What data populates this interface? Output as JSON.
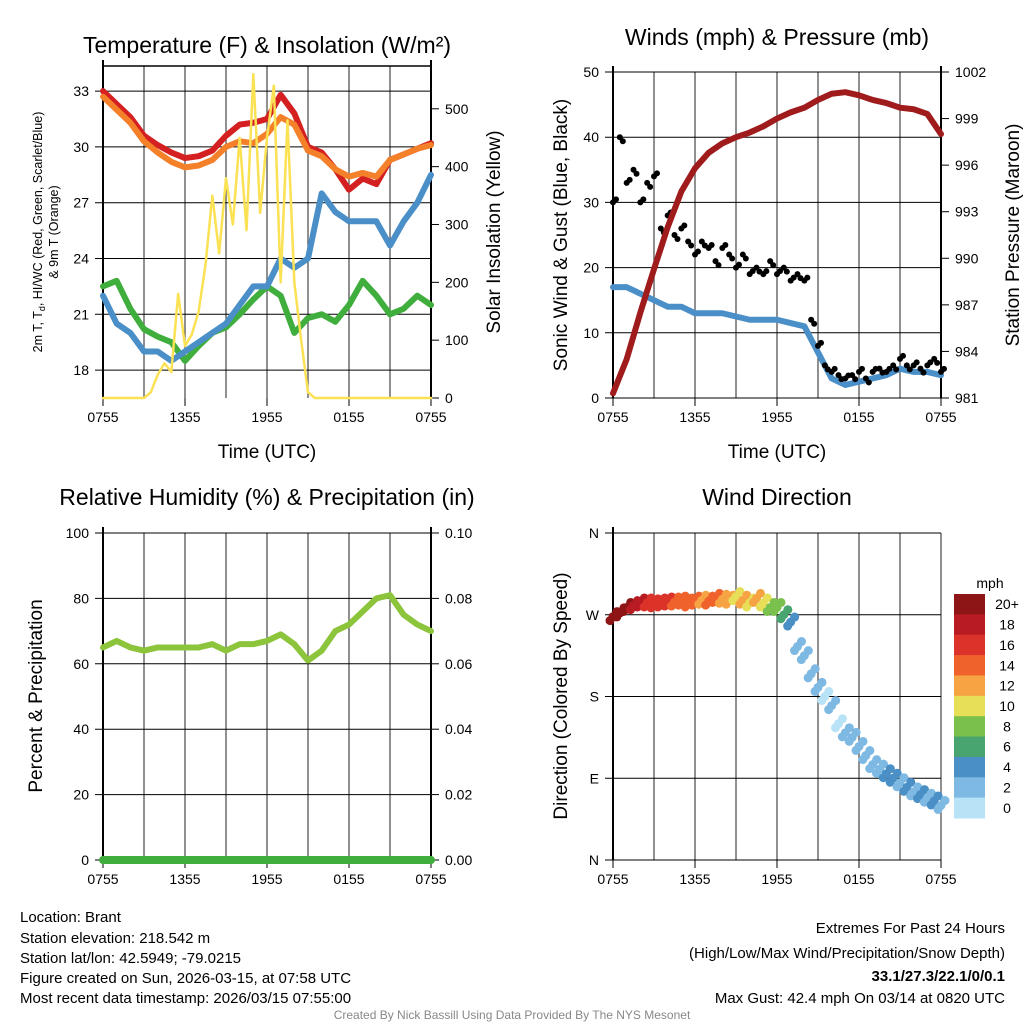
{
  "colors": {
    "temp_red": "#d42020",
    "temp9m_orange": "#f5802a",
    "dewpoint_green": "#3fae3c",
    "windchill_blue": "#4a8fc8",
    "insolation_yellow": "#fbe154",
    "gust_black": "#000000",
    "wind_blue": "#4a8fc8",
    "pressure_maroon": "#a01c1c",
    "rh_green": "#8cc43c",
    "precip_green": "#3fae3c",
    "extremes_red": "#d42020",
    "credit_gray": "#888888"
  },
  "x_ticks": [
    "0755",
    "1355",
    "1955",
    "0155",
    "0755"
  ],
  "chart_data": [
    {
      "type": "line",
      "title": "Temperature (F) & Insolation (W/m²)",
      "xlabel": "Time (UTC)",
      "ylabel_parts": [
        "2m T, T",
        "d",
        ", HI/WC (Red, Green, Scarlet/Blue)"
      ],
      "ylabel_line2": "& 9m T (Orange)",
      "y2label": "Solar Insolation (Yellow)",
      "x_unit": "hours since 0755 UTC",
      "xlim": [
        0,
        24
      ],
      "ylim": [
        16.5,
        34.35
      ],
      "y2lim": [
        0,
        574
      ],
      "yticks": [
        "18",
        "21",
        "24",
        "27",
        "30",
        "33"
      ],
      "y2ticks": [
        "0",
        "100",
        "200",
        "300",
        "400",
        "500"
      ],
      "series": [
        {
          "name": "2m T",
          "axis": "left",
          "color_key": "temp_red",
          "step": 1,
          "values": [
            33,
            32.3,
            31.6,
            30.6,
            30.1,
            29.7,
            29.4,
            29.5,
            29.8,
            30.6,
            31.2,
            31.3,
            31.5,
            32.8,
            31.8,
            30,
            29.7,
            28.8,
            27.7,
            28.3,
            28,
            29.3,
            29.6,
            29.9,
            30.2
          ]
        },
        {
          "name": "9m T",
          "axis": "left",
          "color_key": "temp9m_orange",
          "step": 1,
          "values": [
            32.7,
            32,
            31.3,
            30.3,
            29.7,
            29.2,
            28.9,
            29,
            29.3,
            30,
            30.3,
            30.2,
            30.7,
            31.6,
            31.2,
            29.8,
            29.5,
            28.8,
            28.4,
            28.6,
            28.4,
            29.3,
            29.6,
            29.9,
            30.1
          ]
        },
        {
          "name": "Dewpoint",
          "axis": "left",
          "color_key": "dewpoint_green",
          "step": 1,
          "values": [
            22.5,
            22.8,
            21.3,
            20.2,
            19.8,
            19.5,
            18.5,
            19.3,
            20,
            20.3,
            21,
            21.8,
            22.5,
            22,
            20,
            20.8,
            21,
            20.6,
            21.5,
            22.8,
            22,
            21,
            21.3,
            22,
            21.5
          ]
        },
        {
          "name": "HI/WC",
          "axis": "left",
          "color_key": "windchill_blue",
          "step": 1,
          "values": [
            22,
            20.5,
            20,
            19,
            19,
            18.5,
            19,
            19.5,
            20,
            20.5,
            21.5,
            22.5,
            22.5,
            24,
            23.5,
            24,
            27.5,
            26.5,
            26,
            26,
            26,
            24.7,
            26,
            27,
            28.5
          ]
        },
        {
          "name": "Solar Insolation",
          "axis": "right",
          "color_key": "insolation_yellow",
          "step": 0.5,
          "values": [
            0,
            0,
            0,
            0,
            0,
            0,
            0,
            10,
            40,
            60,
            45,
            180,
            90,
            110,
            150,
            230,
            350,
            250,
            380,
            300,
            450,
            290,
            560,
            320,
            450,
            540,
            200,
            480,
            200,
            100,
            10,
            0,
            0,
            0,
            0,
            0,
            0,
            0,
            0,
            0,
            0,
            0,
            0,
            0,
            0,
            0,
            0,
            0,
            0
          ]
        }
      ]
    },
    {
      "type": "line+scatter",
      "title": "Winds (mph) & Pressure (mb)",
      "xlabel": "Time (UTC)",
      "ylabel": "Sonic Wind & Gust (Blue, Black)",
      "y2label": "Station Pressure (Maroon)",
      "xlim": [
        0,
        24
      ],
      "ylim": [
        0,
        50
      ],
      "y2lim": [
        981,
        1002
      ],
      "yticks": [
        "0",
        "10",
        "20",
        "30",
        "40",
        "50"
      ],
      "y2ticks": [
        "981",
        "984",
        "987",
        "990",
        "993",
        "996",
        "999",
        "1002"
      ],
      "series": [
        {
          "name": "Sustained wind",
          "axis": "left",
          "color_key": "wind_blue",
          "step": 1,
          "values": [
            17,
            17,
            16,
            15,
            14,
            14,
            13,
            13,
            13,
            12.5,
            12,
            12,
            12,
            11.5,
            11,
            7,
            3,
            2,
            2.5,
            3,
            3.5,
            4.5,
            4,
            4,
            3.5
          ]
        },
        {
          "name": "Gust",
          "axis": "left",
          "color_key": "gust_black",
          "step": 0.5,
          "mode": "points",
          "values": [
            30,
            40,
            33,
            35,
            30,
            33,
            34,
            26,
            28,
            25,
            26,
            24,
            22,
            24,
            23,
            21,
            23,
            22,
            20,
            22,
            19,
            20,
            19,
            21,
            19,
            20,
            18,
            19,
            18,
            12,
            8,
            5,
            4,
            3.5,
            3,
            3.5,
            4,
            3,
            4,
            4.5,
            4,
            5,
            6,
            5,
            5,
            4.5,
            5,
            6,
            4
          ]
        },
        {
          "name": "Station Pressure",
          "axis": "right",
          "color_key": "pressure_maroon",
          "step": 1,
          "values": [
            981.3,
            983.5,
            986.5,
            989.3,
            992,
            994.3,
            995.8,
            996.8,
            997.4,
            997.8,
            998.1,
            998.5,
            999,
            999.4,
            999.7,
            1000.2,
            1000.6,
            1000.7,
            1000.5,
            1000.2,
            1000,
            999.7,
            999.6,
            999.3,
            998
          ]
        }
      ]
    },
    {
      "type": "line",
      "title": "Relative Humidity (%) & Precipitation (in)",
      "ylabel": "Percent & Precipitation",
      "xlim": [
        0,
        24
      ],
      "ylim": [
        0,
        100
      ],
      "y2lim": [
        0,
        0.1
      ],
      "yticks": [
        "0",
        "20",
        "40",
        "60",
        "80",
        "100"
      ],
      "y2ticks": [
        "0.00",
        "0.02",
        "0.04",
        "0.06",
        "0.08",
        "0.10"
      ],
      "series": [
        {
          "name": "Relative Humidity",
          "axis": "left",
          "color_key": "rh_green",
          "step": 1,
          "values": [
            65,
            67,
            65,
            64,
            65,
            65,
            65,
            65,
            66,
            64,
            66,
            66,
            67,
            69,
            66,
            61,
            64,
            70,
            72,
            76,
            80,
            81,
            75,
            72,
            70
          ]
        },
        {
          "name": "Precipitation",
          "axis": "right",
          "color_key": "precip_green",
          "step": 1,
          "values": [
            0,
            0,
            0,
            0,
            0,
            0,
            0,
            0,
            0,
            0,
            0,
            0,
            0,
            0,
            0,
            0,
            0,
            0,
            0,
            0,
            0,
            0,
            0,
            0,
            0
          ]
        }
      ]
    },
    {
      "type": "scatter",
      "title": "Wind Direction",
      "ylabel": "Direction (Colored By Speed)",
      "xlim": [
        0,
        24
      ],
      "ylim": [
        0,
        360
      ],
      "yticks": [
        "N",
        "E",
        "S",
        "W",
        "N"
      ],
      "step": 0.5,
      "direction_deg": [
        268,
        272,
        278,
        280,
        283,
        283,
        282,
        283,
        284,
        284,
        285,
        283,
        285,
        286,
        285,
        288,
        287,
        286,
        290,
        286,
        283,
        288,
        283,
        278,
        278,
        270,
        262,
        235,
        225,
        205,
        190,
        180,
        170,
        150,
        140,
        135,
        125,
        115,
        105,
        100,
        95,
        90,
        85,
        80,
        75,
        72,
        68,
        65,
        60
      ],
      "speed_mph": [
        20,
        20,
        20,
        18,
        18,
        16,
        16,
        16,
        16,
        14,
        14,
        14,
        14,
        12,
        14,
        14,
        12,
        12,
        10,
        12,
        10,
        12,
        10,
        8,
        8,
        6,
        4,
        2,
        2,
        2,
        2,
        0,
        2,
        0,
        2,
        2,
        2,
        2,
        2,
        2,
        4,
        4,
        2,
        4,
        2,
        4,
        2,
        4,
        2
      ],
      "colorbar": {
        "title": "mph",
        "labels": [
          "20+",
          "18",
          "16",
          "14",
          "12",
          "10",
          "8",
          "6",
          "4",
          "2",
          "0"
        ],
        "colors": [
          "#8e1516",
          "#b81c22",
          "#db3229",
          "#f0622c",
          "#f6a443",
          "#e6df57",
          "#7ac04c",
          "#48a56f",
          "#4a8fc5",
          "#7eb9e3",
          "#b8e2f6"
        ]
      }
    }
  ],
  "station_info": [
    "Location: Brant",
    "Station elevation: 218.542 m",
    "Station lat/lon: 42.5949; -79.0215",
    "Figure created on Sun, 2026-03-15, at 07:58 UTC",
    "Most recent data timestamp: 2026/03/15 07:55:00"
  ],
  "extremes": {
    "title": "Extremes For Past 24 Hours",
    "subtitle": "(High/Low/Max Wind/Precipitation/Snow Depth)",
    "values": "33.1/27.3/22.1/0/0.1",
    "max_gust": "Max Gust: 42.4 mph On 03/14 at 0820 UTC"
  },
  "credit": "Created By Nick Bassill Using Data Provided By The NYS Mesonet"
}
